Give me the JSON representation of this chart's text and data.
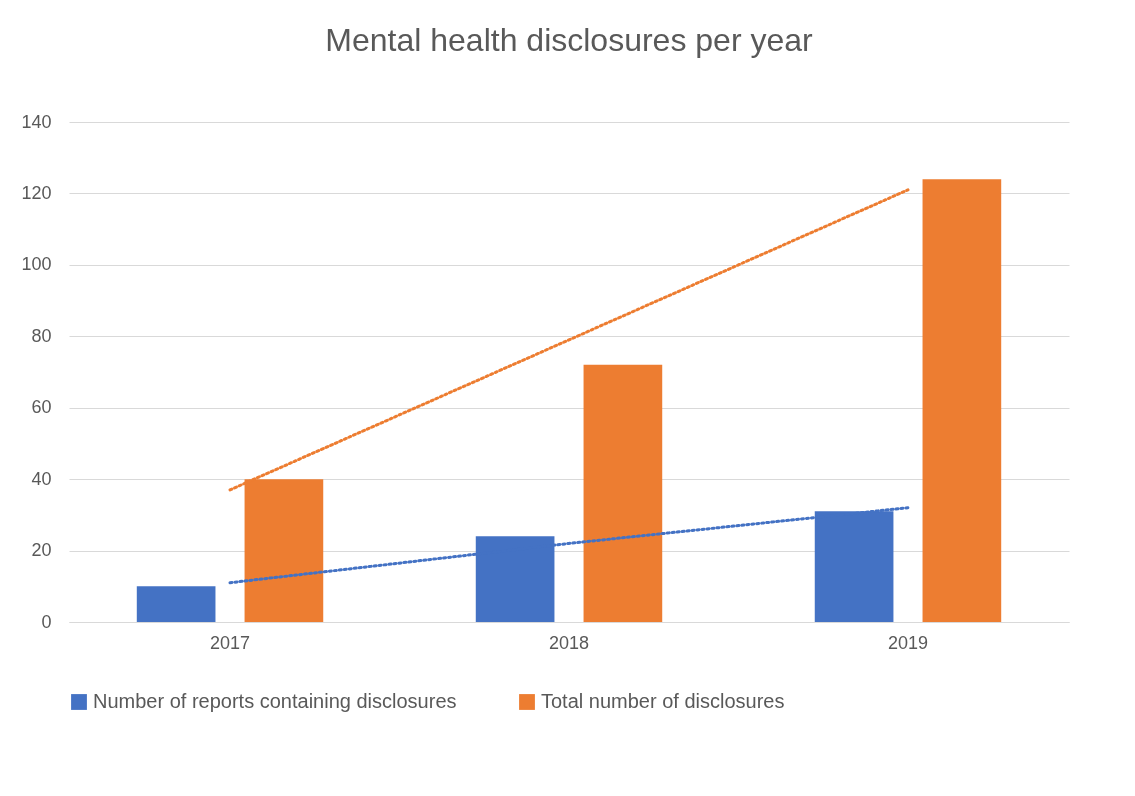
{
  "chart_data": {
    "type": "bar",
    "title": "Mental health disclosures per year",
    "categories": [
      "2017",
      "2018",
      "2019"
    ],
    "series": [
      {
        "name": "Number of reports containing disclosures",
        "color": "#4472c4",
        "values": [
          10,
          24,
          31
        ]
      },
      {
        "name": "Total number of disclosures",
        "color": "#ed7d31",
        "values": [
          40,
          72,
          124
        ]
      },
      {
        "type": "line",
        "color": "#4472c4",
        "line_style": "dotted",
        "values": [
          11,
          22,
          32
        ]
      },
      {
        "type": "line",
        "color": "#ed7d31",
        "line_style": "dotted",
        "values": [
          37,
          79,
          121
        ]
      }
    ],
    "ylim": [
      0,
      140
    ],
    "yticks": [
      0,
      20,
      40,
      60,
      80,
      100,
      120,
      140
    ],
    "grid": "y",
    "legend": "bottom"
  }
}
